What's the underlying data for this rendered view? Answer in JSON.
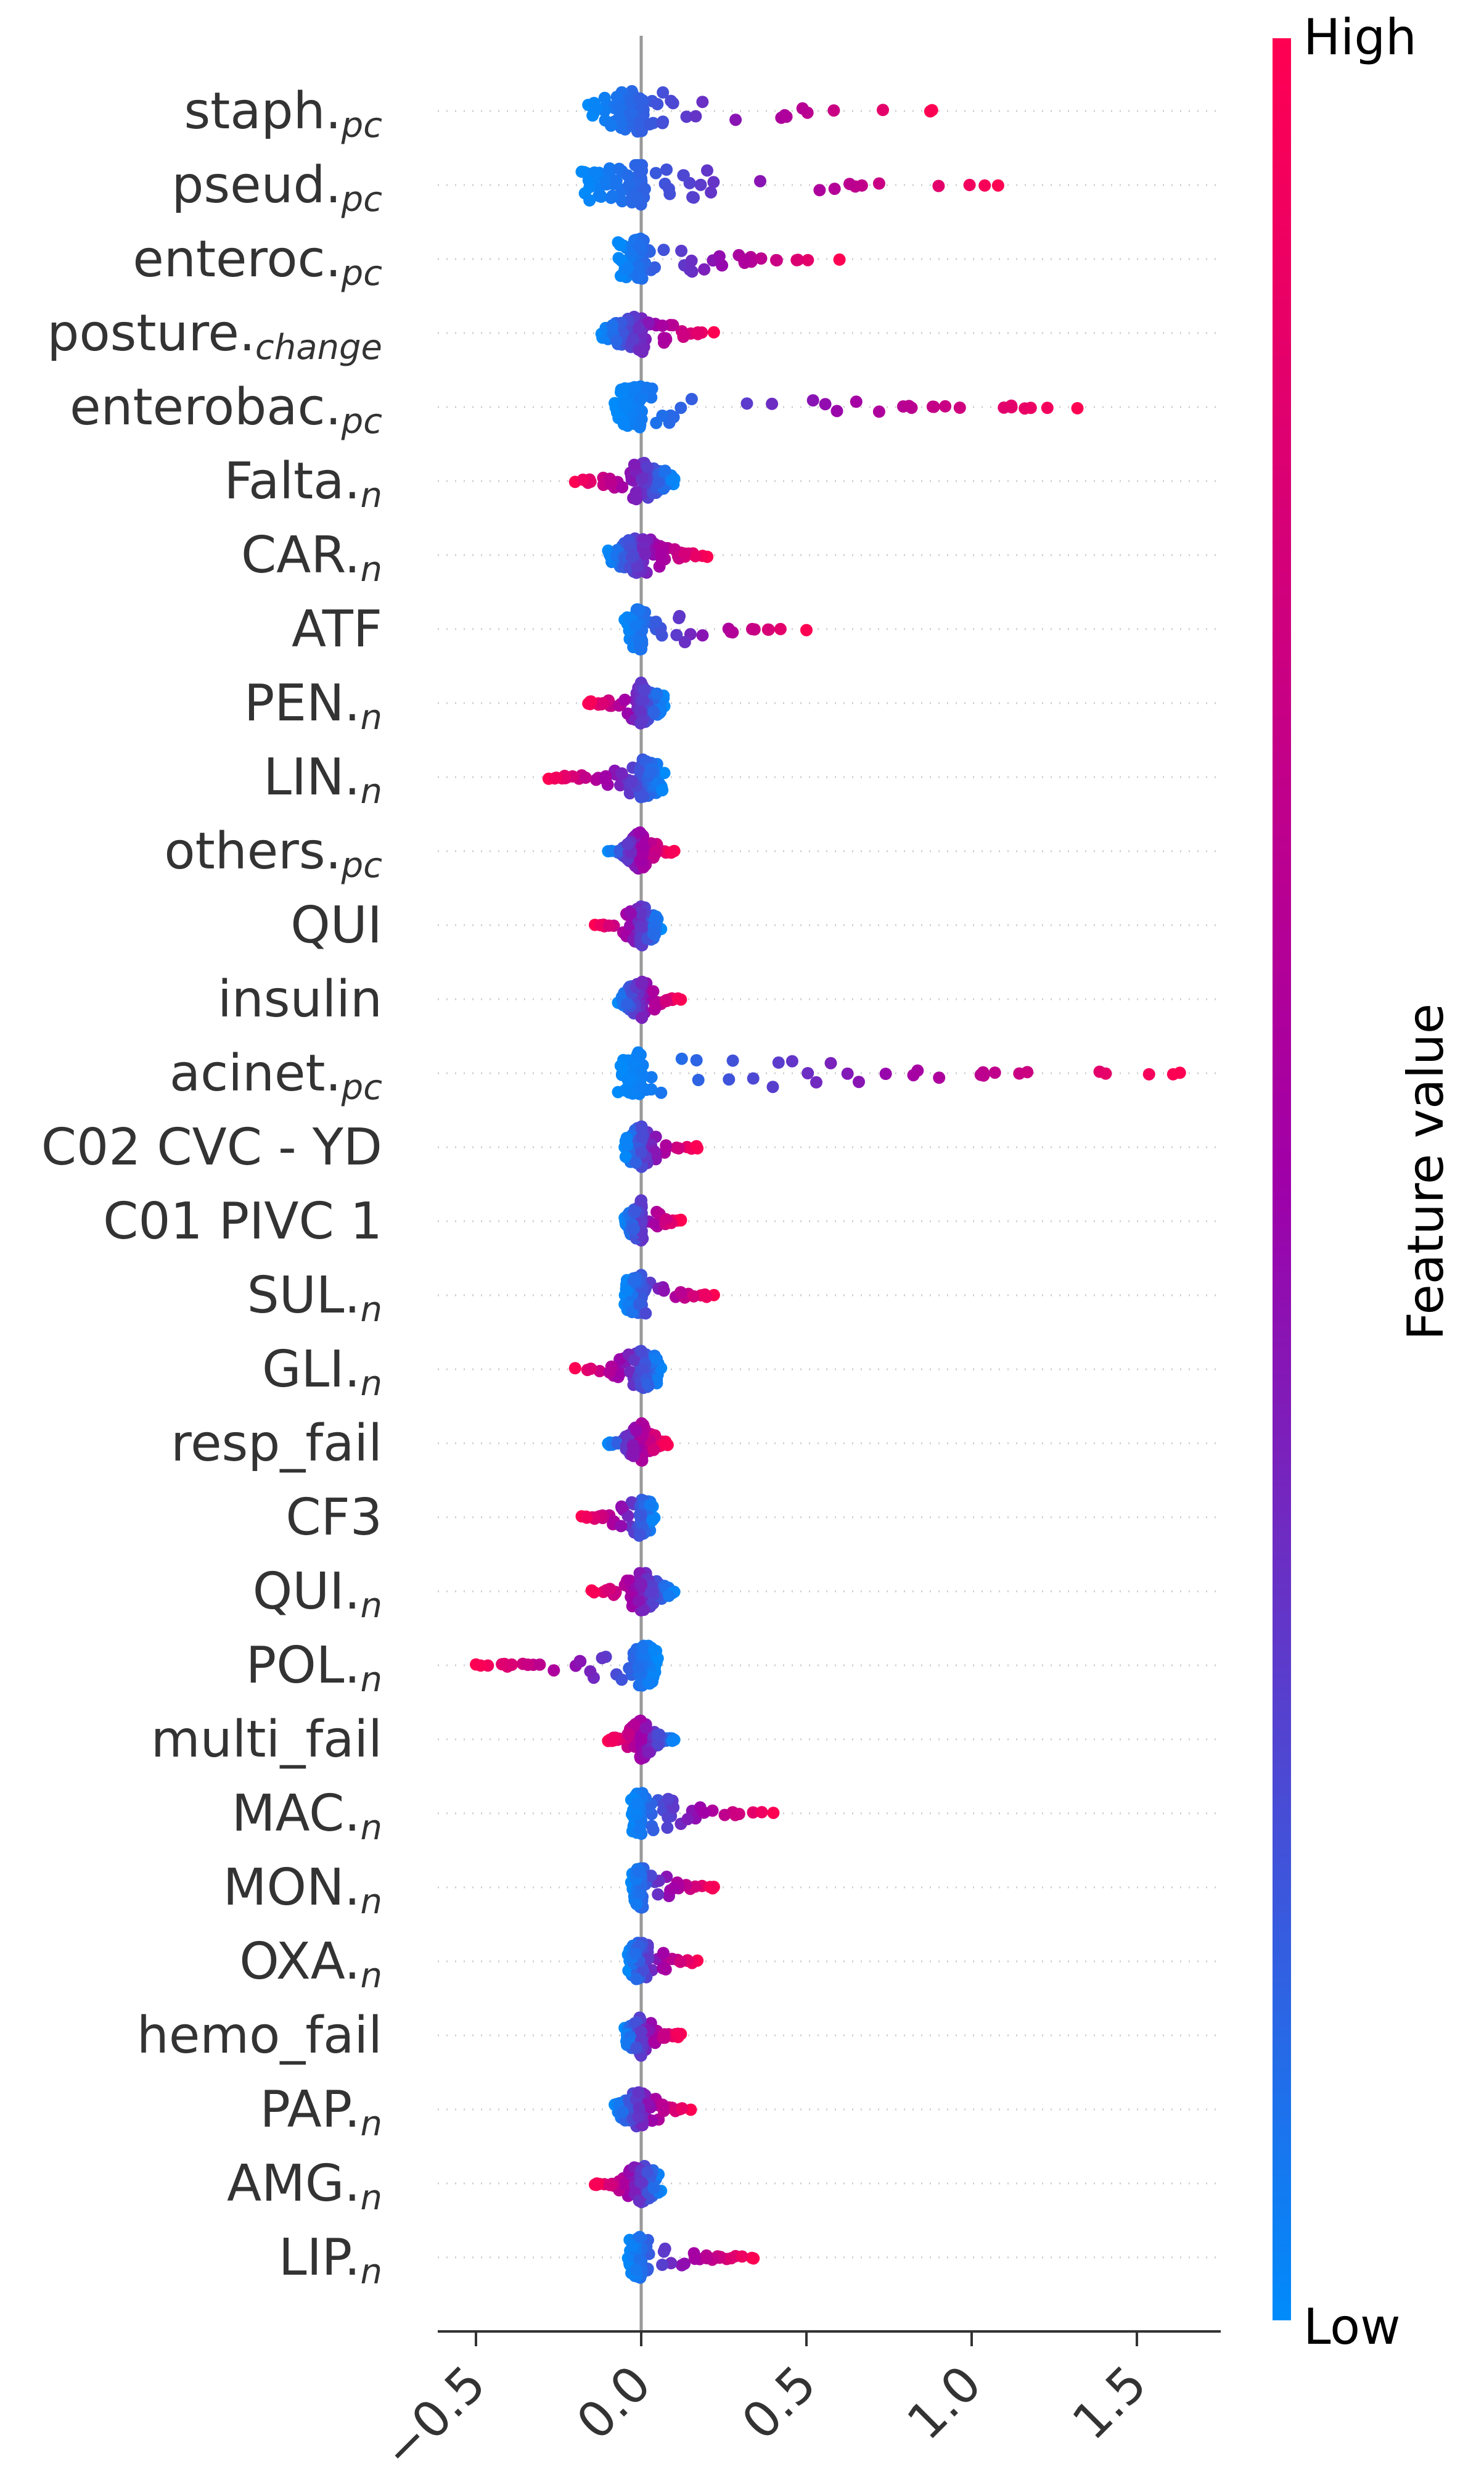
{
  "chart_data": {
    "type": "scatter",
    "subtype": "beeswarm",
    "title": "",
    "xlabel": "",
    "ylabel": "",
    "xlim": [
      -0.6,
      1.74
    ],
    "xticks": [
      -0.5,
      0.0,
      0.5,
      1.0,
      1.5
    ],
    "xtick_labels": [
      "−0.5",
      "0.0",
      "0.5",
      "1.0",
      "1.5"
    ],
    "colors": {
      "low": "#008bfb",
      "mid": "#a000a8",
      "high": "#ff0052",
      "axis": "#333333",
      "zero_line": "#999999",
      "row_grid": "#cccccc"
    },
    "colorbar": {
      "high_label": "High",
      "low_label": "Low",
      "title": "Feature value"
    },
    "features": [
      {
        "base": "staph.",
        "sub": "pc",
        "min": -0.16,
        "max": 0.88,
        "low_side": "left"
      },
      {
        "base": "pseud.",
        "sub": "pc",
        "min": -0.18,
        "max": 1.08,
        "low_side": "left"
      },
      {
        "base": "enteroc.",
        "sub": "pc",
        "min": -0.07,
        "max": 0.6,
        "low_side": "left"
      },
      {
        "base": "posture.",
        "sub": "change",
        "min": -0.12,
        "max": 0.22,
        "low_side": "left"
      },
      {
        "base": "enterobac.",
        "sub": "pc",
        "min": -0.08,
        "max": 1.32,
        "low_side": "left"
      },
      {
        "base": "Falta.",
        "sub": "n",
        "min": -0.2,
        "max": 0.1,
        "low_side": "right"
      },
      {
        "base": "CAR.",
        "sub": "n",
        "min": -0.1,
        "max": 0.2,
        "low_side": "left"
      },
      {
        "base": "ATF",
        "sub": "",
        "min": -0.05,
        "max": 0.5,
        "low_side": "left"
      },
      {
        "base": "PEN.",
        "sub": "n",
        "min": -0.16,
        "max": 0.07,
        "low_side": "right"
      },
      {
        "base": "LIN.",
        "sub": "n",
        "min": -0.28,
        "max": 0.07,
        "low_side": "right"
      },
      {
        "base": "others.",
        "sub": "pc",
        "min": -0.1,
        "max": 0.1,
        "low_side": "left"
      },
      {
        "base": "QUI",
        "sub": "",
        "min": -0.14,
        "max": 0.06,
        "low_side": "right"
      },
      {
        "base": "insulin",
        "sub": "",
        "min": -0.07,
        "max": 0.12,
        "low_side": "left"
      },
      {
        "base": "acinet.",
        "sub": "pc",
        "min": -0.07,
        "max": 1.63,
        "low_side": "left"
      },
      {
        "base": "C02 CVC - YD",
        "sub": "",
        "min": -0.05,
        "max": 0.17,
        "low_side": "left"
      },
      {
        "base": "C01 PIVC 1",
        "sub": "",
        "min": -0.05,
        "max": 0.12,
        "low_side": "left"
      },
      {
        "base": "SUL.",
        "sub": "n",
        "min": -0.05,
        "max": 0.22,
        "low_side": "left"
      },
      {
        "base": "GLI.",
        "sub": "n",
        "min": -0.2,
        "max": 0.06,
        "low_side": "right"
      },
      {
        "base": "resp_fail",
        "sub": "",
        "min": -0.1,
        "max": 0.08,
        "low_side": "left"
      },
      {
        "base": "CF3",
        "sub": "",
        "min": -0.18,
        "max": 0.04,
        "low_side": "right"
      },
      {
        "base": "QUI.",
        "sub": "n",
        "min": -0.15,
        "max": 0.1,
        "low_side": "right"
      },
      {
        "base": "POL.",
        "sub": "n",
        "min": -0.5,
        "max": 0.05,
        "low_side": "right"
      },
      {
        "base": "multi_fail",
        "sub": "",
        "min": -0.1,
        "max": 0.1,
        "low_side": "right"
      },
      {
        "base": "MAC.",
        "sub": "n",
        "min": -0.03,
        "max": 0.4,
        "low_side": "left"
      },
      {
        "base": "MON.",
        "sub": "n",
        "min": -0.03,
        "max": 0.22,
        "low_side": "left"
      },
      {
        "base": "OXA.",
        "sub": "n",
        "min": -0.04,
        "max": 0.17,
        "low_side": "left"
      },
      {
        "base": "hemo_fail",
        "sub": "",
        "min": -0.05,
        "max": 0.12,
        "low_side": "left"
      },
      {
        "base": "PAP.",
        "sub": "n",
        "min": -0.08,
        "max": 0.15,
        "low_side": "left"
      },
      {
        "base": "AMG.",
        "sub": "n",
        "min": -0.14,
        "max": 0.06,
        "low_side": "right"
      },
      {
        "base": "LIP.",
        "sub": "n",
        "min": -0.04,
        "max": 0.34,
        "low_side": "left"
      }
    ]
  }
}
